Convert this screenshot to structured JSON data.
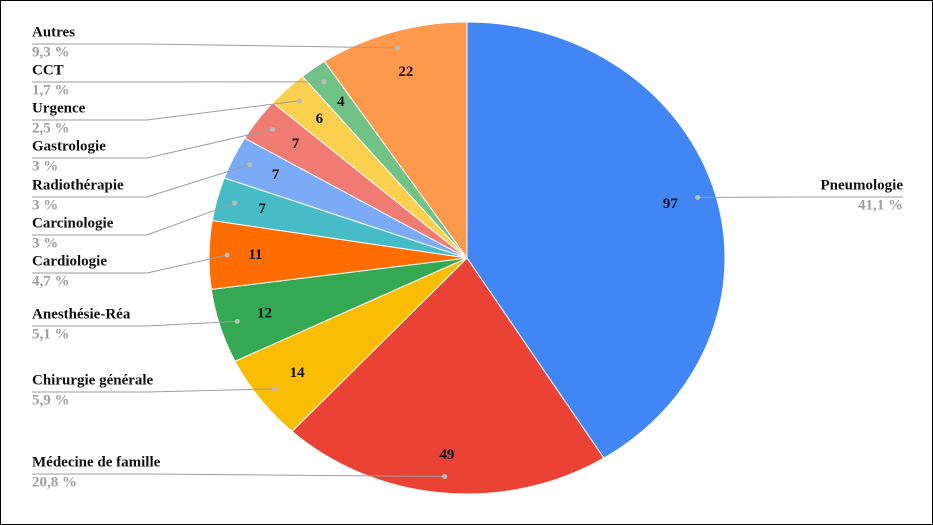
{
  "chart_data": {
    "type": "pie",
    "categories": [
      "Pneumologie",
      "Médecine de famille",
      "Chirurgie générale",
      "Anesthésie-Réa",
      "Cardiologie",
      "Carcinologie",
      "Radiothérapie",
      "Gastrologie",
      "Urgence",
      "CCT",
      "Autres"
    ],
    "values": [
      97,
      49,
      14,
      12,
      11,
      7,
      7,
      7,
      6,
      4,
      22
    ],
    "percent_labels": [
      "41,1 %",
      "20,8 %",
      "5,9 %",
      "5,1 %",
      "4,7 %",
      "3 %",
      "3 %",
      "3 %",
      "2,5 %",
      "1,7 %",
      "9,3 %"
    ],
    "colors": [
      "#4285f4",
      "#ea4335",
      "#fbbc04",
      "#34a853",
      "#ff6d01",
      "#46bdc6",
      "#7baaf7",
      "#f07b72",
      "#fcd04f",
      "#71c287",
      "#ff994d"
    ]
  }
}
